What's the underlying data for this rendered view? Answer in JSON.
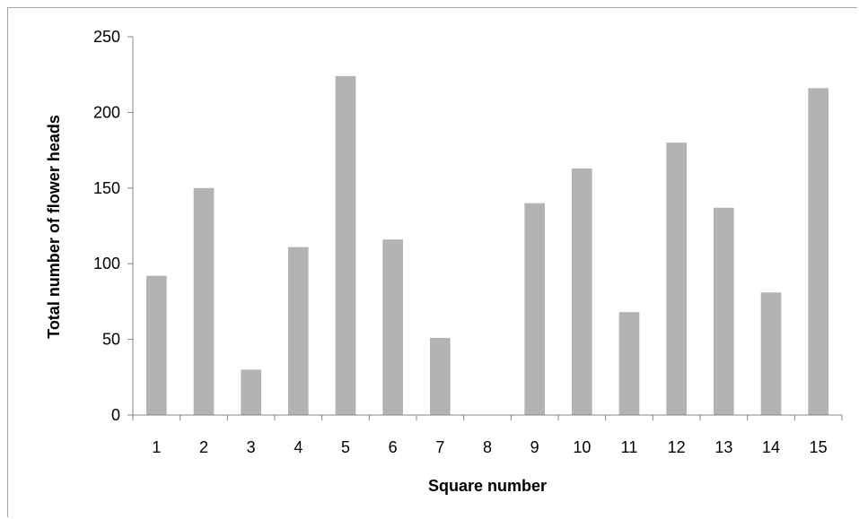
{
  "chart_data": {
    "type": "bar",
    "title": "",
    "xlabel": "Square number",
    "ylabel": "Total number of flower heads",
    "categories": [
      "1",
      "2",
      "3",
      "4",
      "5",
      "6",
      "7",
      "8",
      "9",
      "10",
      "11",
      "12",
      "13",
      "14",
      "15"
    ],
    "values": [
      92,
      150,
      30,
      111,
      224,
      116,
      51,
      0,
      140,
      163,
      68,
      180,
      137,
      81,
      216
    ],
    "ylim": [
      0,
      250
    ],
    "yticks": [
      0,
      50,
      100,
      150,
      200,
      250
    ],
    "grid": false,
    "legend": "none",
    "bar_color": "#b3b3b3",
    "axis_color": "#868686"
  }
}
